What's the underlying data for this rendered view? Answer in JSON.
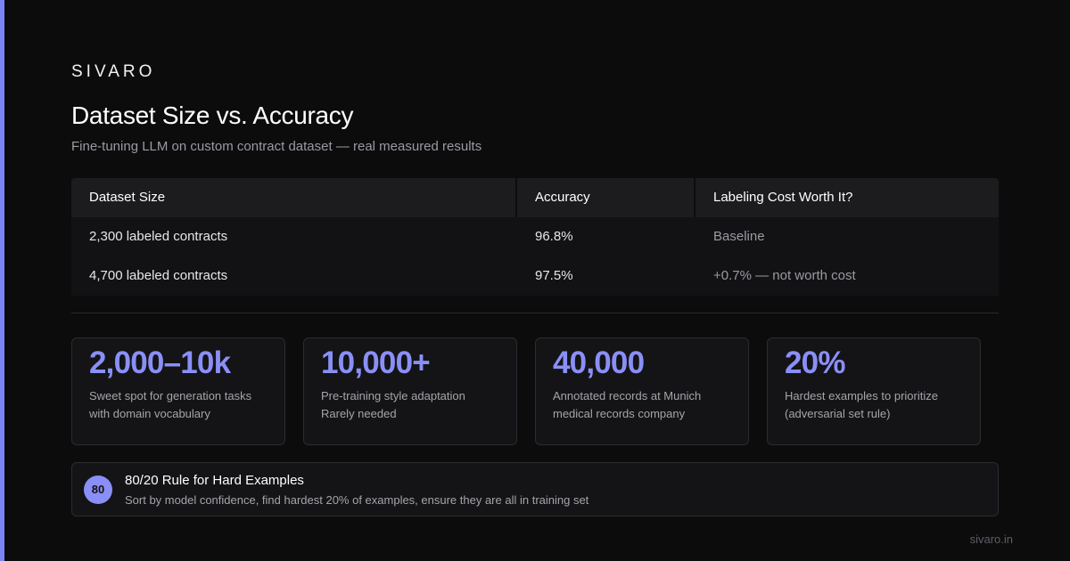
{
  "brand": "SIVARO",
  "title": "Dataset Size vs. Accuracy",
  "subtitle": "Fine-tuning LLM on custom contract dataset — real measured results",
  "accent_color": "#7c83f2",
  "table": {
    "headers": [
      "Dataset Size",
      "Accuracy",
      "Labeling Cost Worth It?"
    ],
    "rows": [
      [
        "2,300 labeled contracts",
        "96.8%",
        "Baseline"
      ],
      [
        "4,700 labeled contracts",
        "97.5%",
        "+0.7% — not worth cost"
      ]
    ]
  },
  "stats": [
    {
      "value": "2,000–10k",
      "lines": [
        "Sweet spot for generation tasks",
        "with domain vocabulary"
      ]
    },
    {
      "value": "10,000+",
      "lines": [
        "Pre-training style adaptation",
        "Rarely needed"
      ]
    },
    {
      "value": "40,000",
      "lines": [
        "Annotated records at Munich",
        "medical records company"
      ]
    },
    {
      "value": "20%",
      "lines": [
        "Hardest examples to prioritize",
        "(adversarial set rule)"
      ]
    }
  ],
  "rule": {
    "badge": "80",
    "title": "80/20 Rule for Hard Examples",
    "description": "Sort by model confidence, find hardest 20% of examples, ensure they are all in training set"
  },
  "footer": "sivaro.in"
}
